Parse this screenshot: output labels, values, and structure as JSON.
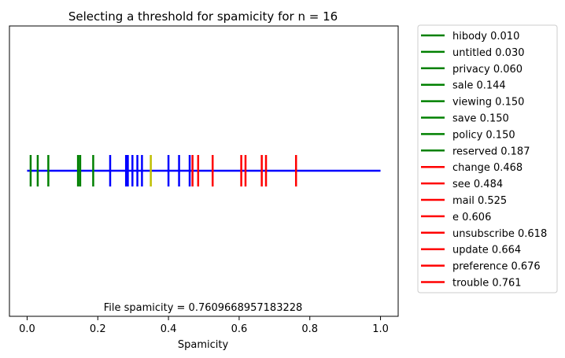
{
  "chart_data": {
    "type": "line",
    "title": "Selecting a threshold for spamicity for n = 16",
    "xlabel": "Spamicity",
    "ylabel": "",
    "xlim": [
      -0.05,
      1.05
    ],
    "xticks": [
      "0.0",
      "0.2",
      "0.4",
      "0.6",
      "0.8",
      "1.0"
    ],
    "xtick_values": [
      0.0,
      0.2,
      0.4,
      0.6,
      0.8,
      1.0
    ],
    "grid": false,
    "legend_placement": "outside right",
    "baseline": {
      "from": 0.0,
      "to": 1.0,
      "color": "#0000ff"
    },
    "annotation": "File spamicity = 0.7609668957183228",
    "threshold_marker": {
      "value": 0.35,
      "color": "#bfbf00"
    },
    "neutral_markers": {
      "color": "#0000ff",
      "values": [
        0.235,
        0.28,
        0.285,
        0.298,
        0.312,
        0.325,
        0.4,
        0.43,
        0.46
      ]
    },
    "legend": [
      {
        "label": "hibody 0.010",
        "value": 0.01,
        "color": "#008000"
      },
      {
        "label": "untitled 0.030",
        "value": 0.03,
        "color": "#008000"
      },
      {
        "label": "privacy 0.060",
        "value": 0.06,
        "color": "#008000"
      },
      {
        "label": "sale 0.144",
        "value": 0.144,
        "color": "#008000"
      },
      {
        "label": "viewing 0.150",
        "value": 0.15,
        "color": "#008000"
      },
      {
        "label": "save 0.150",
        "value": 0.15,
        "color": "#008000"
      },
      {
        "label": "policy 0.150",
        "value": 0.15,
        "color": "#008000"
      },
      {
        "label": "reserved 0.187",
        "value": 0.187,
        "color": "#008000"
      },
      {
        "label": "change 0.468",
        "value": 0.468,
        "color": "#ff0000"
      },
      {
        "label": "see 0.484",
        "value": 0.484,
        "color": "#ff0000"
      },
      {
        "label": "mail 0.525",
        "value": 0.525,
        "color": "#ff0000"
      },
      {
        "label": "e 0.606",
        "value": 0.606,
        "color": "#ff0000"
      },
      {
        "label": "unsubscribe 0.618",
        "value": 0.618,
        "color": "#ff0000"
      },
      {
        "label": "update 0.664",
        "value": 0.664,
        "color": "#ff0000"
      },
      {
        "label": "preference 0.676",
        "value": 0.676,
        "color": "#ff0000"
      },
      {
        "label": "trouble 0.761",
        "value": 0.761,
        "color": "#ff0000"
      }
    ]
  }
}
